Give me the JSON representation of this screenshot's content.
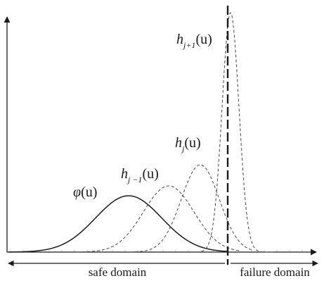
{
  "labels": {
    "phi": "φ(u)",
    "h_prev": "h_{j−1}(u)",
    "h_j": "h_j(u)",
    "h_next": "h_{j+1}(u)"
  },
  "label_parts": {
    "phi_main": "φ",
    "phi_arg": "(u)",
    "h_prev_main": "h",
    "h_prev_sub": "j −1",
    "h_prev_arg": "(u)",
    "h_j_main": "h",
    "h_j_sub": "j",
    "h_j_arg": "(u)",
    "h_next_main": "h",
    "h_next_sub": "j+1",
    "h_next_arg": "(u)"
  },
  "domains": {
    "safe": "safe domain",
    "failure": "failure domain"
  },
  "colors": {
    "ink": "#1a1a1a",
    "dashed": "#444444"
  }
}
